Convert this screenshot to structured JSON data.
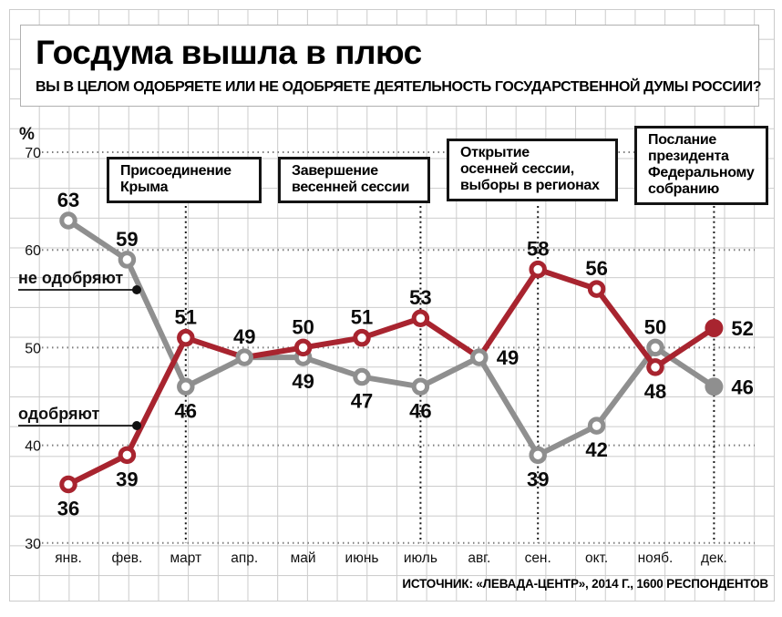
{
  "header": {
    "title": "Госдума вышла в плюс",
    "subtitle": "ВЫ В ЦЕЛОМ ОДОБРЯЕТЕ ИЛИ НЕ ОДОБРЯЕТЕ ДЕЯТЕЛЬНОСТЬ ГОСУДАРСТВЕННОЙ ДУМЫ РОССИИ?"
  },
  "footer": {
    "source": "ИСТОЧНИК: «ЛЕВАДА-ЦЕНТР», 2014 Г., 1600 РЕСПОНДЕНТОВ"
  },
  "chart_data": {
    "type": "line",
    "unit": "%",
    "categories": [
      "янв.",
      "фев.",
      "март",
      "апр.",
      "май",
      "июнь",
      "июль",
      "авг.",
      "сен.",
      "окт.",
      "нояб.",
      "дек."
    ],
    "ylim": [
      30,
      70
    ],
    "yticks": [
      70,
      60,
      50,
      40,
      30
    ],
    "grid": "graph-paper background plus dotted horizontal lines at each ytick",
    "legend_position": "inline callout labels at left side of plot",
    "series": [
      {
        "name": "не одобряют",
        "color": "#8F8F8F",
        "values": [
          63,
          59,
          46,
          49,
          49,
          47,
          46,
          49,
          39,
          42,
          50,
          46
        ],
        "label_positions": [
          "above",
          "above",
          "below",
          "above",
          "below",
          "below",
          "below",
          "right",
          "below",
          "below",
          "above",
          "right"
        ]
      },
      {
        "name": "одобряют",
        "color": "#A8242F",
        "values": [
          36,
          39,
          51,
          49,
          50,
          51,
          53,
          49,
          58,
          56,
          48,
          52
        ],
        "label_positions": [
          "below",
          "below",
          "above",
          "none",
          "above",
          "above",
          "above",
          "none",
          "above",
          "above",
          "below",
          "right"
        ]
      }
    ],
    "annotations": [
      {
        "lines": [
          "Присоединение",
          "Крыма"
        ],
        "month_index": 2
      },
      {
        "lines": [
          "Завершение",
          "весенней сессии"
        ],
        "month_index": 6
      },
      {
        "lines": [
          "Открытие",
          "осенней сессии,",
          "выборы в регионах"
        ],
        "month_index": 8
      },
      {
        "lines": [
          "Послание",
          "президента",
          "Федеральному",
          "собранию"
        ],
        "month_index": 11
      }
    ]
  }
}
